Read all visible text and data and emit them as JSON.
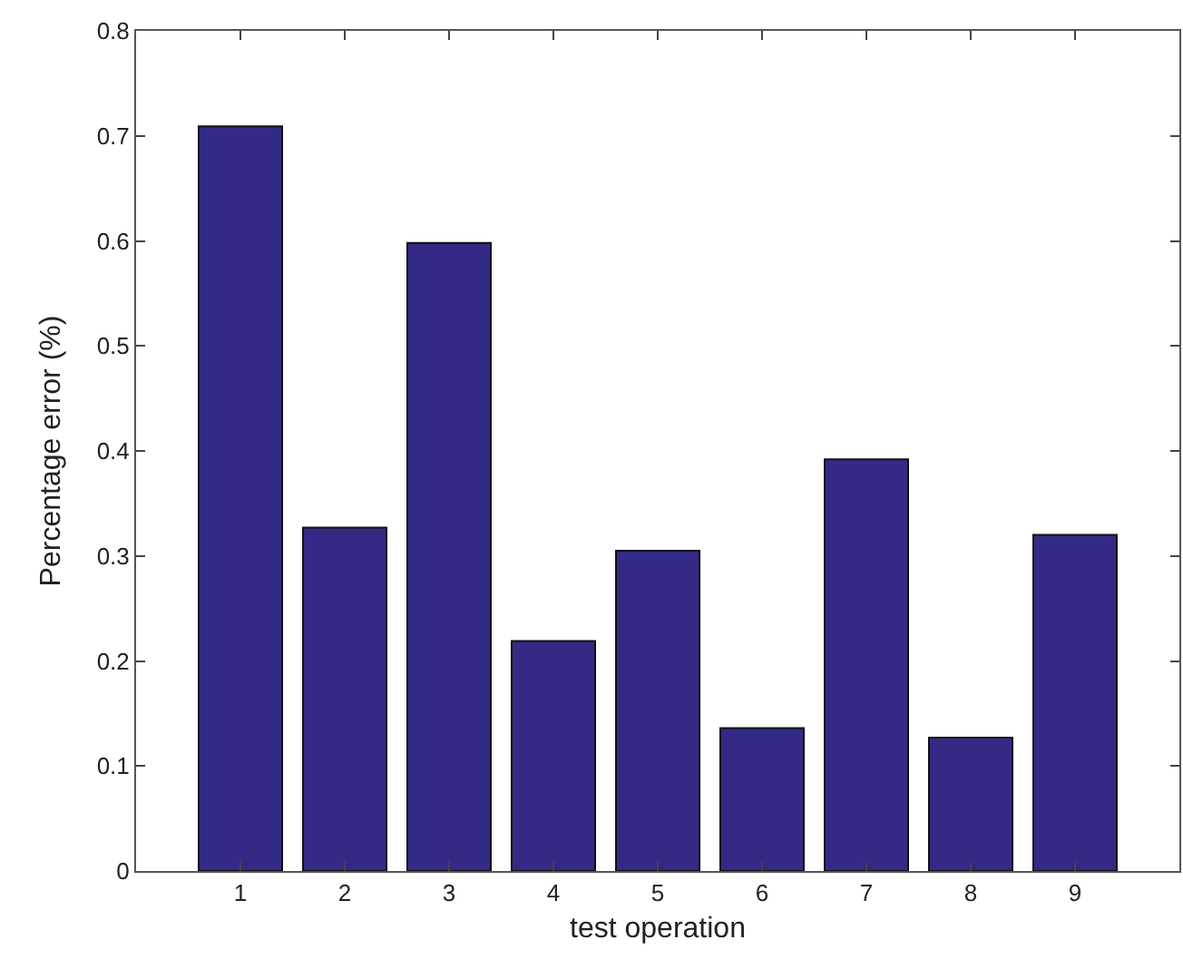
{
  "chart_data": {
    "type": "bar",
    "xlabel": "test operation",
    "ylabel": "Percentage error (%)",
    "categories": [
      "1",
      "2",
      "3",
      "4",
      "5",
      "6",
      "7",
      "8",
      "9"
    ],
    "values": [
      0.709,
      0.327,
      0.598,
      0.219,
      0.305,
      0.136,
      0.392,
      0.127,
      0.32
    ],
    "color": "#332a86",
    "ylim": [
      0,
      0.8
    ],
    "yticks": [
      0,
      0.1,
      0.2,
      0.3,
      0.4,
      0.5,
      0.6,
      0.7,
      0.8
    ],
    "grid": false,
    "legend": false
  }
}
